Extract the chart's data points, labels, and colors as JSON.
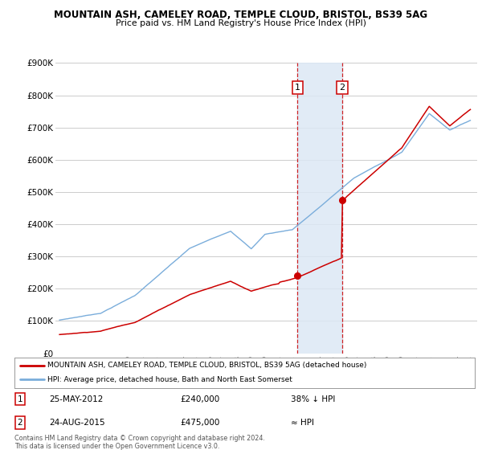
{
  "title": "MOUNTAIN ASH, CAMELEY ROAD, TEMPLE CLOUD, BRISTOL, BS39 5AG",
  "subtitle": "Price paid vs. HM Land Registry's House Price Index (HPI)",
  "ylim": [
    0,
    900000
  ],
  "yticks": [
    0,
    100000,
    200000,
    300000,
    400000,
    500000,
    600000,
    700000,
    800000,
    900000
  ],
  "ytick_labels": [
    "£0",
    "£100K",
    "£200K",
    "£300K",
    "£400K",
    "£500K",
    "£600K",
    "£700K",
    "£800K",
    "£900K"
  ],
  "background_color": "#ffffff",
  "grid_color": "#cccccc",
  "hpi_color": "#7aaddb",
  "price_color": "#cc0000",
  "annotation1_date": "25-MAY-2012",
  "annotation1_price": "£240,000",
  "annotation1_rel": "38% ↓ HPI",
  "annotation2_date": "24-AUG-2015",
  "annotation2_price": "£475,000",
  "annotation2_rel": "≈ HPI",
  "legend_label1": "MOUNTAIN ASH, CAMELEY ROAD, TEMPLE CLOUD, BRISTOL, BS39 5AG (detached house)",
  "legend_label2": "HPI: Average price, detached house, Bath and North East Somerset",
  "footer": "Contains HM Land Registry data © Crown copyright and database right 2024.\nThis data is licensed under the Open Government Licence v3.0.",
  "sale1_x": 2012.38,
  "sale1_y": 240000,
  "sale2_x": 2015.65,
  "sale2_y": 475000,
  "vline1_x": 2012.38,
  "vline2_x": 2015.65,
  "shade_xmin": 2012.38,
  "shade_xmax": 2015.65,
  "xmin": 1994.7,
  "xmax": 2025.5
}
